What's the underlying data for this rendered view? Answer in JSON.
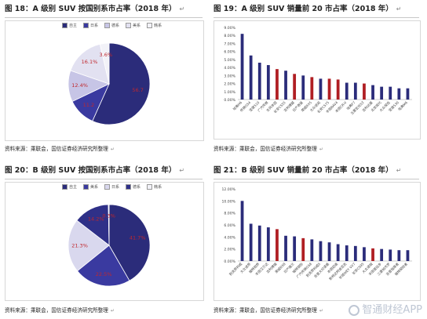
{
  "panels": {
    "p18": {
      "title": "图 18：A 级别 SUV 按国别系市占率（2018 年）",
      "source": "资料来源：乘联会，国信证券经济研究所整理",
      "edit_mark": "↵"
    },
    "p19": {
      "title": "图 19：A 级别 SUV 销量前 20 市占率（2018 年）",
      "source": "资料来源：乘联会，国信证券经济研究所整理",
      "edit_mark": "↵"
    },
    "p20": {
      "title": "图 20：B 级别 SUV 按国别系市占率（2018 年）",
      "source": "资料来源：乘联会，国信证券经济研究所整理",
      "edit_mark": "↵"
    },
    "p21": {
      "title": "图 21：B 级别 SUV 销量前 20 市占率（2018 年）",
      "source": "资料来源：乘联会，国信证券经济研究所整理",
      "edit_mark": "↵"
    }
  },
  "watermark": "智通财经APP",
  "colors": {
    "navy": "#2b2c7a",
    "red": "#b01e23",
    "lavender": "#c7c5e6",
    "lightgray": "#e9e9f2",
    "mid": "#3a3aa0"
  },
  "chart_data": [
    {
      "id": "p18",
      "type": "pie",
      "legend": [
        "自主",
        "日系",
        "德系",
        "美系",
        "韩系"
      ],
      "values": [
        56.7,
        11.2,
        12.4,
        16.1,
        3.6
      ],
      "labels": [
        "56.7",
        "11.2",
        "12.4%",
        "16.1%",
        "3.6%"
      ],
      "colors": [
        "#2b2c7a",
        "#3a3aa0",
        "#c7c5e6",
        "#e2e1f1",
        "#f2f2f8"
      ]
    },
    {
      "id": "p19",
      "type": "bar",
      "yticks": [
        "9.00%",
        "8.00%",
        "7.00%",
        "6.00%",
        "5.00%",
        "4.00%",
        "3.00%",
        "2.00%",
        "1.00%",
        "0.00%"
      ],
      "ylim": [
        0,
        9
      ],
      "categories": [
        "哈弗H6",
        "传祺GS4",
        "宝骏510",
        "广汽传祺",
        "东风本田",
        "长安CS55",
        "吉利博越",
        "日产奇骏",
        "荣威RX5",
        "大众途观",
        "长安CS75",
        "丰田RAV4",
        "本田CR-V",
        "哈弗F7",
        "五菱宏光S3",
        "吉利远景",
        "北京现代",
        "大众探岳",
        "宝骏530",
        "哈弗M6"
      ],
      "values": [
        8.2,
        5.5,
        4.6,
        4.3,
        3.8,
        3.6,
        3.2,
        3.0,
        2.8,
        2.6,
        2.6,
        2.5,
        2.1,
        2.1,
        2.0,
        1.8,
        1.6,
        1.6,
        1.4,
        1.4
      ],
      "highlight": [
        4,
        6,
        8,
        10,
        11,
        14
      ]
    },
    {
      "id": "p20",
      "type": "pie",
      "legend": [
        "自主",
        "美系",
        "日系",
        "德系",
        "韩系"
      ],
      "values": [
        41.7,
        22.5,
        21.3,
        14.2,
        0.3
      ],
      "labels": [
        "41.7%",
        "22.5%",
        "21.3%",
        "14.2%",
        "0.3%"
      ],
      "colors": [
        "#2b2c7a",
        "#3a3aa0",
        "#d9d8ee",
        "#2f3088",
        "#f2f2f8"
      ]
    },
    {
      "id": "p21",
      "type": "bar",
      "yticks": [
        "12.00%",
        "10.00%",
        "8.00%",
        "6.00%",
        "4.00%",
        "2.00%",
        "0.00%"
      ],
      "ylim": [
        0,
        12
      ],
      "categories": [
        "别克昂科威",
        "大众途昂",
        "福特锐界",
        "丰田汉兰达",
        "吉利博瑞",
        "荣威RX8",
        "日产楼兰",
        "福特锐际",
        "广汽传祺GS8",
        "别克昂科威S",
        "吉普大切诺基",
        "本田冠道",
        "斯柯达柯迪亚克",
        "长城WEY VV7",
        "长安CS95",
        "大众途锐",
        "丰田普拉多",
        "三菱帕杰罗",
        "吉普指南者",
        "福特探险者"
      ],
      "values": [
        10.0,
        6.2,
        5.9,
        5.6,
        5.3,
        4.2,
        4.1,
        3.8,
        3.6,
        3.3,
        3.1,
        2.8,
        2.6,
        2.5,
        2.3,
        2.1,
        2.0,
        1.9,
        1.8,
        1.8
      ],
      "highlight": [
        4,
        7,
        15
      ]
    }
  ]
}
